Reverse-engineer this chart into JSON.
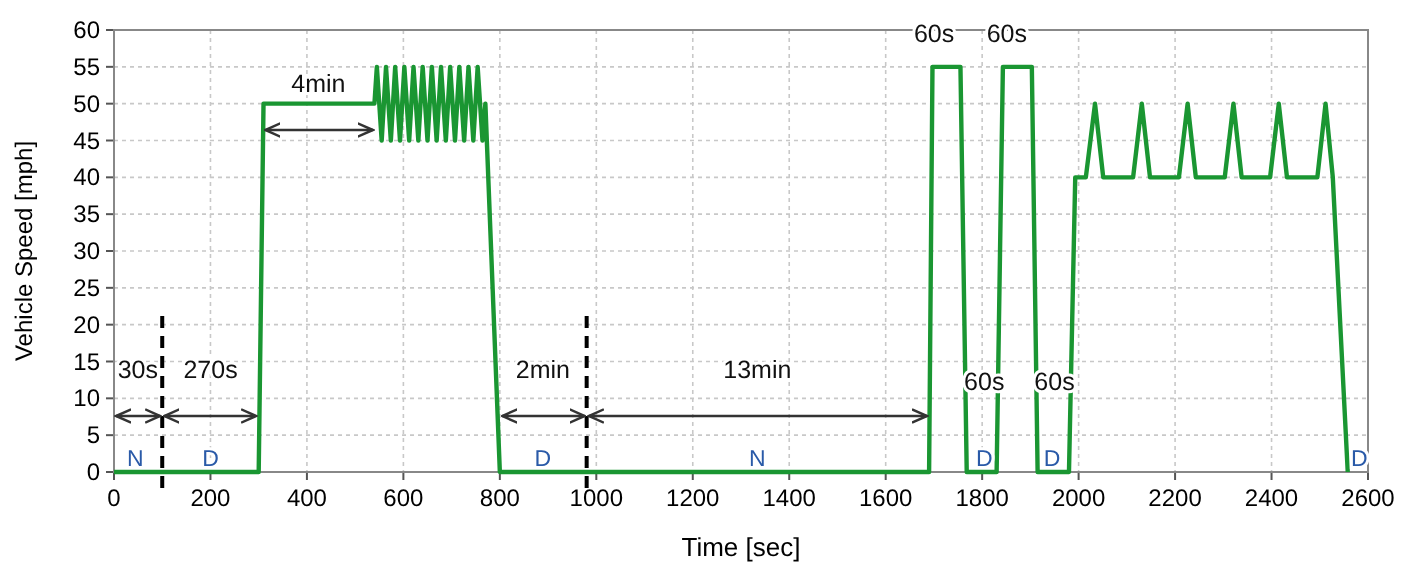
{
  "chart_data": {
    "type": "line",
    "xlabel": "Time [sec]",
    "ylabel": "Vehicle Speed [mph]",
    "xlim": [
      0,
      2600
    ],
    "xticks": [
      0,
      200,
      400,
      600,
      800,
      1000,
      1200,
      1400,
      1600,
      1800,
      2000,
      2200,
      2400,
      2600
    ],
    "ylim": [
      0,
      60
    ],
    "yticks": [
      0,
      5,
      10,
      15,
      20,
      25,
      30,
      35,
      40,
      45,
      50,
      55,
      60
    ],
    "grid": true,
    "marker": "none",
    "line_style": "solid",
    "series": [
      {
        "color": "#1a9632",
        "x": [
          0,
          300,
          310,
          540,
          545,
          555,
          564,
          574,
          583,
          593,
          602,
          612,
          621,
          631,
          640,
          650,
          659,
          669,
          678,
          688,
          697,
          707,
          716,
          726,
          735,
          745,
          754,
          764,
          770,
          800,
          1690,
          1697,
          1755,
          1768,
          1830,
          1843,
          1903,
          1915,
          1980,
          1993,
          2015,
          2034,
          2051,
          2113,
          2131,
          2148,
          2208,
          2226,
          2243,
          2303,
          2321,
          2338,
          2397,
          2415,
          2432,
          2495,
          2512,
          2527,
          2558
        ],
        "values": [
          0,
          0,
          50,
          50,
          55,
          45,
          55,
          45,
          55,
          45,
          55,
          45,
          55,
          45,
          55,
          45,
          55,
          45,
          55,
          45,
          55,
          45,
          55,
          45,
          55,
          45,
          55,
          45,
          50,
          0,
          0,
          55,
          55,
          0,
          0,
          55,
          55,
          0,
          0,
          40,
          40,
          50,
          40,
          40,
          50,
          40,
          40,
          50,
          40,
          40,
          50,
          40,
          40,
          50,
          40,
          40,
          50,
          40,
          0
        ]
      }
    ],
    "ref_lines": [
      {
        "axis": "x",
        "value": 100,
        "color": "#000000",
        "line_style": "dashed"
      },
      {
        "axis": "x",
        "value": 980,
        "color": "#000000",
        "line_style": "dashed"
      }
    ],
    "annotations": [
      "30s",
      "270s",
      "4min",
      "2min",
      "13min",
      "60s",
      "60s",
      "60s",
      "60s",
      "N",
      "D",
      "D",
      "N",
      "D",
      "D",
      "D"
    ]
  }
}
